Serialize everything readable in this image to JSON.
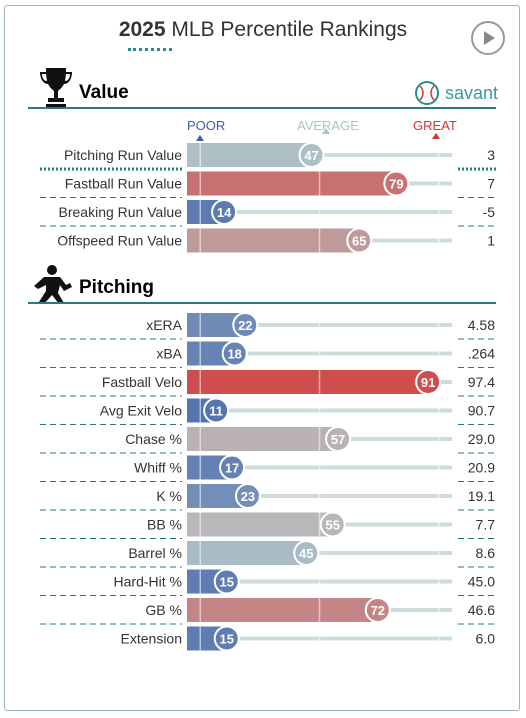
{
  "header": {
    "year": "2025",
    "title": "MLB Percentile Rankings"
  },
  "sections": {
    "value": "Value",
    "pitching": "Pitching",
    "brand": "savant"
  },
  "legend": {
    "poor": "POOR",
    "average": "AVERAGE",
    "great": "GREAT"
  },
  "colors": {
    "poor": "#3a5ea8",
    "average": "#b5c6c8",
    "great": "#d63333",
    "accent": "#2a8c8c"
  },
  "chart_data": {
    "type": "bar",
    "xlim": [
      0,
      100
    ],
    "groups": [
      {
        "name": "Value",
        "categories": [
          "Pitching Run Value",
          "Fastball Run Value",
          "Breaking Run Value",
          "Offspeed Run Value"
        ],
        "percentiles": [
          47,
          79,
          14,
          65
        ],
        "values": [
          "3",
          "7",
          "-5",
          "1"
        ]
      },
      {
        "name": "Pitching",
        "categories": [
          "xERA",
          "xBA",
          "Fastball Velo",
          "Avg Exit Velo",
          "Chase %",
          "Whiff %",
          "K %",
          "BB %",
          "Barrel %",
          "Hard-Hit %",
          "GB %",
          "Extension"
        ],
        "percentiles": [
          22,
          18,
          91,
          11,
          57,
          17,
          23,
          55,
          45,
          15,
          72,
          15
        ],
        "values": [
          "4.58",
          ".264",
          "97.4",
          "90.7",
          "29.0",
          "20.9",
          "19.1",
          "7.7",
          "8.6",
          "45.0",
          "46.6",
          "6.0"
        ]
      }
    ]
  }
}
